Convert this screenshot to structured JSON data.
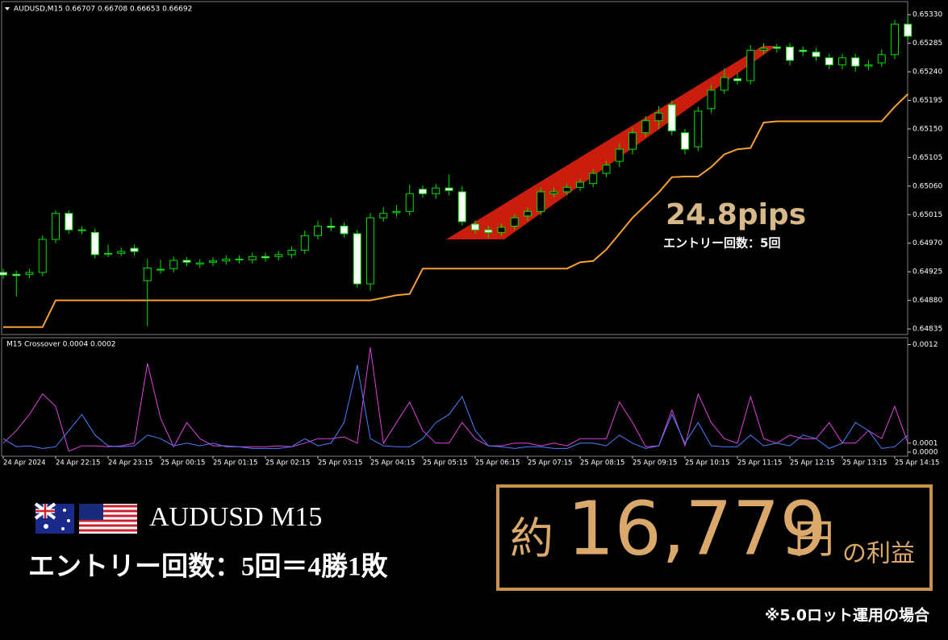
{
  "chart_data": [
    {
      "type": "candlestick",
      "title": "AUDUSD,M15 0.66707 0.66708 0.66653 0.66692",
      "up_color": "#00e000",
      "down_color": "#ffffff",
      "categories": [
        "24 Apr 2024",
        null,
        null,
        null,
        "24 Apr 22:15",
        null,
        null,
        null,
        "24 Apr 23:15",
        null,
        null,
        null,
        "25 Apr 00:15",
        null,
        null,
        null,
        "25 Apr 01:15",
        null,
        null,
        null,
        "25 Apr 02:15",
        null,
        null,
        null,
        "25 Apr 03:15",
        null,
        null,
        null,
        "25 Apr 04:15",
        null,
        null,
        null,
        "25 Apr 05:15",
        null,
        null,
        null,
        "25 Apr 06:15",
        null,
        null,
        null,
        "25 Apr 07:15",
        null,
        null,
        null,
        "25 Apr 08:15",
        null,
        null,
        null,
        "25 Apr 09:15",
        null,
        null,
        null,
        "25 Apr 10:15",
        null,
        null,
        null,
        "25 Apr 11:15",
        null,
        null,
        null,
        "25 Apr 12:15",
        null,
        null,
        null,
        "25 Apr 13:15",
        null,
        null,
        null,
        "25 Apr 14:15",
        null
      ],
      "open": [
        0.64924,
        0.64921,
        0.64921,
        0.64924,
        0.64976,
        0.65017,
        0.6499,
        0.64987,
        0.64953,
        0.64954,
        0.64962,
        0.64911,
        0.64929,
        0.6493,
        0.64943,
        0.64937,
        0.6494,
        0.64942,
        0.64944,
        0.64944,
        0.64949,
        0.64949,
        0.64952,
        0.64959,
        0.64982,
        0.64997,
        0.64997,
        0.64985,
        0.64906,
        0.6501,
        0.65018,
        0.6502,
        0.65055,
        0.65048,
        0.65057,
        0.65051,
        0.65,
        0.64991,
        0.64987,
        0.64997,
        0.65013,
        0.6502,
        0.65048,
        0.65051,
        0.65058,
        0.65064,
        0.6508,
        0.65099,
        0.65118,
        0.65144,
        0.65163,
        0.65188,
        0.65144,
        0.65122,
        0.65182,
        0.65211,
        0.65229,
        0.65226,
        0.65274,
        0.65279,
        0.65279,
        0.65274,
        0.65271,
        0.65262,
        0.65251,
        0.65262,
        0.65249,
        0.65254,
        0.65267,
        0.65315
      ],
      "high": [
        0.6493,
        0.64927,
        0.6493,
        0.64982,
        0.65022,
        0.65022,
        0.64997,
        0.64993,
        0.64968,
        0.64963,
        0.64968,
        0.64945,
        0.64944,
        0.64949,
        0.64948,
        0.64945,
        0.64948,
        0.64951,
        0.64951,
        0.64955,
        0.64955,
        0.64958,
        0.64965,
        0.6499,
        0.65005,
        0.6501,
        0.65003,
        0.64991,
        0.65018,
        0.65027,
        0.6503,
        0.65062,
        0.65061,
        0.65063,
        0.65078,
        0.6506,
        0.65006,
        0.64998,
        0.65001,
        0.65016,
        0.65026,
        0.65058,
        0.65058,
        0.65064,
        0.65072,
        0.65087,
        0.651,
        0.65128,
        0.65152,
        0.6517,
        0.65186,
        0.65195,
        0.6515,
        0.65185,
        0.6522,
        0.65245,
        0.65238,
        0.65282,
        0.65285,
        0.65284,
        0.65285,
        0.6528,
        0.65278,
        0.65268,
        0.65268,
        0.65268,
        0.65258,
        0.65275,
        0.65322,
        0.6533
      ],
      "low": [
        0.64914,
        0.64886,
        0.64915,
        0.64918,
        0.6497,
        0.64985,
        0.64984,
        0.64946,
        0.64948,
        0.6495,
        0.64951,
        0.64839,
        0.64922,
        0.64924,
        0.64934,
        0.64931,
        0.64934,
        0.64936,
        0.64938,
        0.64938,
        0.64941,
        0.64943,
        0.64946,
        0.64953,
        0.64976,
        0.64989,
        0.64979,
        0.649,
        0.64895,
        0.65004,
        0.65012,
        0.65014,
        0.65042,
        0.6504,
        0.65045,
        0.64998,
        0.64985,
        0.64978,
        0.64981,
        0.64991,
        0.65005,
        0.65014,
        0.65042,
        0.65045,
        0.65052,
        0.65058,
        0.65074,
        0.6509,
        0.6511,
        0.65137,
        0.6515,
        0.6514,
        0.6511,
        0.65115,
        0.65175,
        0.65205,
        0.6522,
        0.6522,
        0.65268,
        0.6527,
        0.6525,
        0.65265,
        0.65257,
        0.65244,
        0.65244,
        0.6524,
        0.65243,
        0.65248,
        0.6526,
        0.65289
      ],
      "close": [
        0.6492,
        0.64919,
        0.64924,
        0.64976,
        0.65017,
        0.64991,
        0.64991,
        0.64952,
        0.64954,
        0.64957,
        0.64957,
        0.64931,
        0.64928,
        0.64943,
        0.6494,
        0.64939,
        0.64942,
        0.64945,
        0.64945,
        0.64949,
        0.64947,
        0.64952,
        0.64959,
        0.64982,
        0.64997,
        0.64995,
        0.64985,
        0.64906,
        0.6501,
        0.65017,
        0.6502,
        0.65048,
        0.65048,
        0.65057,
        0.65053,
        0.65004,
        0.64991,
        0.64987,
        0.64995,
        0.6501,
        0.6502,
        0.65051,
        0.65051,
        0.65058,
        0.65066,
        0.6508,
        0.65093,
        0.65118,
        0.65144,
        0.65163,
        0.65175,
        0.65147,
        0.65118,
        0.65178,
        0.65211,
        0.65231,
        0.65226,
        0.65274,
        0.65277,
        0.65277,
        0.65258,
        0.65272,
        0.65264,
        0.65251,
        0.65262,
        0.65249,
        0.65251,
        0.65267,
        0.65315,
        0.65296
      ],
      "overlay": {
        "color": "#f7a030",
        "values": [
          0.64838,
          0.64838,
          0.64838,
          0.64838,
          0.6488,
          0.6488,
          0.6488,
          0.6488,
          0.6488,
          0.6488,
          0.6488,
          0.6488,
          0.6488,
          0.6488,
          0.6488,
          0.6488,
          0.6488,
          0.6488,
          0.6488,
          0.6488,
          0.6488,
          0.6488,
          0.6488,
          0.6488,
          0.6488,
          0.6488,
          0.6488,
          0.6488,
          0.6488,
          0.64884,
          0.64888,
          0.6489,
          0.6493,
          0.6493,
          0.6493,
          0.6493,
          0.6493,
          0.6493,
          0.6493,
          0.6493,
          0.6493,
          0.6493,
          0.6493,
          0.6493,
          0.6494,
          0.64942,
          0.6496,
          0.64985,
          0.6501,
          0.6503,
          0.6505,
          0.65074,
          0.65075,
          0.65075,
          0.6509,
          0.6511,
          0.65118,
          0.6512,
          0.6516,
          0.65162,
          0.65162,
          0.65162,
          0.65162,
          0.65162,
          0.65162,
          0.65162,
          0.65162,
          0.65162,
          0.65185,
          0.65205
        ]
      },
      "annotations": [
        "24.8pips",
        "エントリー回数：5回"
      ],
      "ylim": [
        0.6483,
        0.65348
      ],
      "yticks": [
        {
          "value": 0.6533,
          "label": "0.65330"
        },
        0.65285,
        {
          "value": 0.6524,
          "label": "0.65240"
        },
        0.65195,
        {
          "value": 0.6515,
          "label": "0.65150"
        },
        0.65105,
        {
          "value": 0.6506,
          "label": "0.65060"
        },
        0.65015,
        {
          "value": 0.6497,
          "label": "0.64970"
        },
        0.64925,
        {
          "value": 0.6488,
          "label": "0.64880"
        },
        0.64835
      ]
    },
    {
      "type": "line",
      "title": "M15 Crossover 0.0004 0.0002",
      "series": [
        {
          "color": "#e040e0",
          "values": [
            0.0001,
            0.00024,
            0.00042,
            0.00065,
            0.00051,
            1e-05,
            7e-05,
            7e-05,
            6e-05,
            7e-05,
            0.0001,
            0.00099,
            0.00038,
            6e-05,
            0.00033,
            0.00015,
            7e-05,
            7e-05,
            6e-05,
            6e-05,
            6e-05,
            7e-05,
            6e-05,
            0.0001,
            0.00015,
            0.00015,
            0.00017,
            0.0001,
            0.00117,
            0.0001,
            0.00033,
            0.00056,
            0.00024,
            0.0001,
            0.0001,
            0.00033,
            0.00015,
            7e-05,
            7e-05,
            0.0001,
            0.0001,
            7e-05,
            0.0001,
            7e-05,
            0.00015,
            0.00015,
            0.00015,
            0.00056,
            0.00033,
            6e-05,
            7e-05,
            0.00047,
            7e-05,
            0.00065,
            0.00033,
            0.00015,
            0.0001,
            0.00062,
            0.00015,
            0.0001,
            0.00019,
            0.00015,
            0.00015,
            0.00033,
            0.0001,
            0.0001,
            0.00024,
            0.00015,
            0.00051,
            0.0001
          ]
        },
        {
          "color": "#4a80ff",
          "values": [
            0.00015,
            6e-05,
            7e-05,
            4e-05,
            6e-05,
            0.00024,
            0.00042,
            0.00019,
            7e-05,
            6e-05,
            7e-05,
            0.00019,
            0.00015,
            7e-05,
            0.0001,
            7e-05,
            0.0001,
            6e-05,
            6e-05,
            4e-05,
            4e-05,
            4e-05,
            6e-05,
            0.00015,
            7e-05,
            0.0001,
            0.00033,
            0.00097,
            0.00015,
            7e-05,
            6e-05,
            6e-05,
            0.00015,
            0.00033,
            0.00042,
            0.00062,
            0.00024,
            7e-05,
            6e-05,
            4e-05,
            6e-05,
            6e-05,
            4e-05,
            4e-05,
            0.0001,
            0.0001,
            7e-05,
            0.00019,
            0.0001,
            4e-05,
            7e-05,
            0.00042,
            0.0001,
            0.00033,
            7e-05,
            6e-05,
            6e-05,
            0.00019,
            7e-05,
            0.0001,
            7e-05,
            0.00019,
            0.00015,
            4e-05,
            0.0001,
            0.00033,
            0.00024,
            4e-05,
            6e-05,
            0.00019
          ]
        }
      ],
      "ylim": [
        -1e-05,
        0.00125
      ],
      "yticks": [
        0.0012,
        0.0001,
        {
          "value": 0,
          "label": "0.0000"
        }
      ]
    }
  ],
  "banner": {
    "symbol": "AUDUSD M15",
    "result": "エントリー回数：5回＝4勝1敗",
    "profit_prefix": "約",
    "profit": "16,779",
    "profit_unit": "円",
    "profit_suffix": "の利益",
    "note": "※5.0ロット運用の場合"
  }
}
